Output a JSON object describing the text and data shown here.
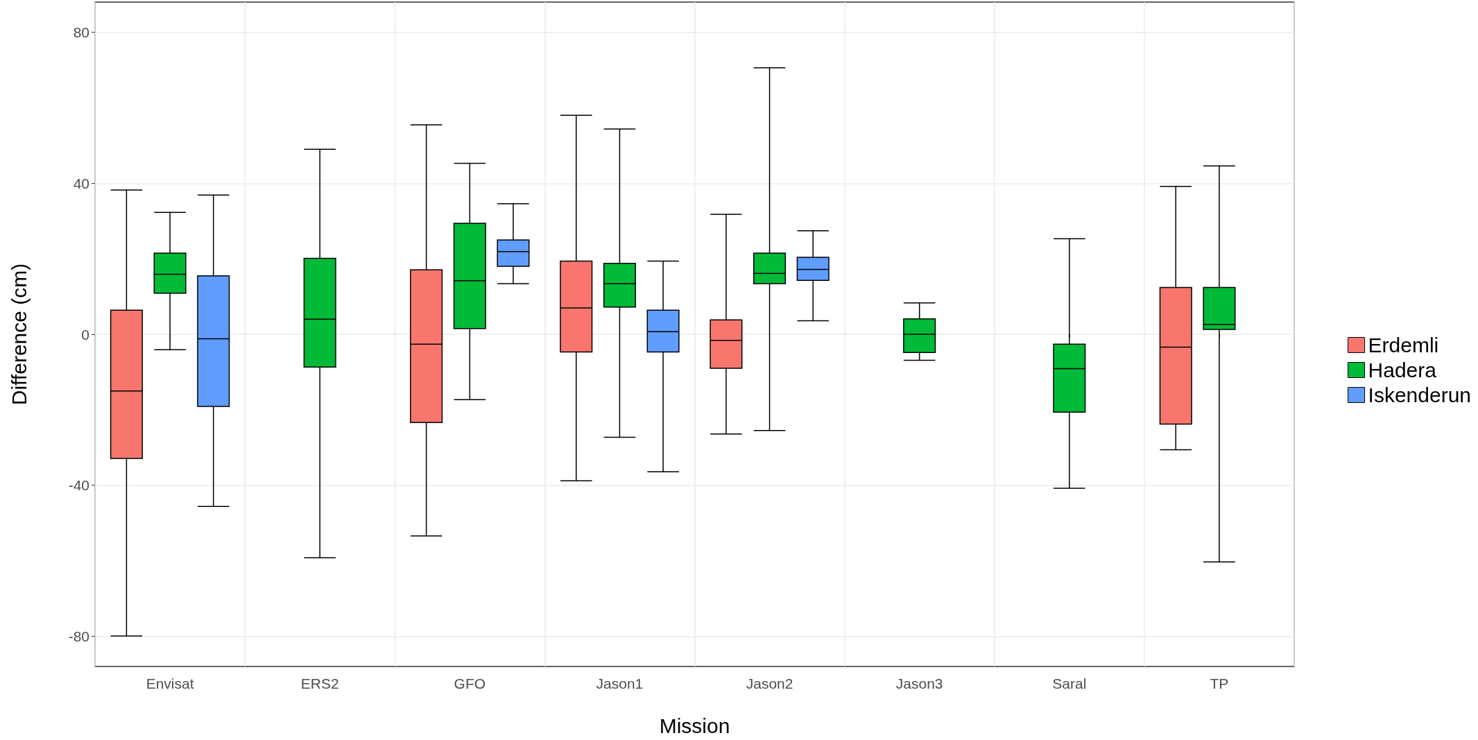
{
  "chart_data": {
    "type": "box",
    "xlabel": "Mission",
    "ylabel": "Difference (cm)",
    "categories": [
      "Envisat",
      "ERS2",
      "GFO",
      "Jason1",
      "Jason2",
      "Jason3",
      "Saral",
      "TP"
    ],
    "ylim": [
      -88,
      88
    ],
    "yticks": [
      -80,
      -40,
      0,
      40,
      80
    ],
    "grid": true,
    "legend": "right",
    "series": [
      {
        "name": "Erdemli",
        "color": "#f8766d",
        "boxes": [
          {
            "low": -79.9,
            "q1": -32.9,
            "median": -15.0,
            "q3": 6.4,
            "high": 38.2
          },
          null,
          {
            "low": -53.4,
            "q1": -23.4,
            "median": -2.6,
            "q3": 17.1,
            "high": 55.5
          },
          {
            "low": -38.8,
            "q1": -4.7,
            "median": 7.0,
            "q3": 19.4,
            "high": 58.0
          },
          {
            "low": -26.4,
            "q1": -9.0,
            "median": -1.6,
            "q3": 3.8,
            "high": 31.8
          },
          null,
          null,
          {
            "low": -30.6,
            "q1": -23.8,
            "median": -3.4,
            "q3": 12.4,
            "high": 39.2
          }
        ]
      },
      {
        "name": "Hadera",
        "color": "#00ba38",
        "boxes": [
          {
            "low": -4.1,
            "q1": 10.9,
            "median": 15.9,
            "q3": 21.5,
            "high": 32.3
          },
          {
            "low": -59.2,
            "q1": -8.7,
            "median": 4.0,
            "q3": 20.1,
            "high": 49.0
          },
          {
            "low": -17.3,
            "q1": 1.5,
            "median": 14.2,
            "q3": 29.4,
            "high": 45.3
          },
          {
            "low": -27.3,
            "q1": 7.2,
            "median": 13.4,
            "q3": 18.8,
            "high": 54.4
          },
          {
            "low": -25.5,
            "q1": 13.4,
            "median": 16.1,
            "q3": 21.5,
            "high": 70.6
          },
          {
            "low": -6.9,
            "q1": -4.8,
            "median": 0.0,
            "q3": 4.1,
            "high": 8.3
          },
          {
            "low": -40.8,
            "q1": -20.6,
            "median": -9.1,
            "q3": -2.6,
            "high": 25.3
          },
          {
            "low": -60.3,
            "q1": 1.3,
            "median": 2.6,
            "q3": 12.4,
            "high": 44.6
          }
        ]
      },
      {
        "name": "Iskenderun",
        "color": "#619cff",
        "boxes": [
          {
            "low": -45.6,
            "q1": -19.1,
            "median": -1.2,
            "q3": 15.5,
            "high": 36.9
          },
          null,
          {
            "low": 13.4,
            "q1": 18.0,
            "median": 21.9,
            "q3": 25.0,
            "high": 34.6
          },
          {
            "low": -36.4,
            "q1": -4.7,
            "median": 0.7,
            "q3": 6.4,
            "high": 19.4
          },
          {
            "low": 3.6,
            "q1": 14.3,
            "median": 17.2,
            "q3": 20.4,
            "high": 27.4
          },
          null,
          null,
          null
        ]
      }
    ]
  }
}
